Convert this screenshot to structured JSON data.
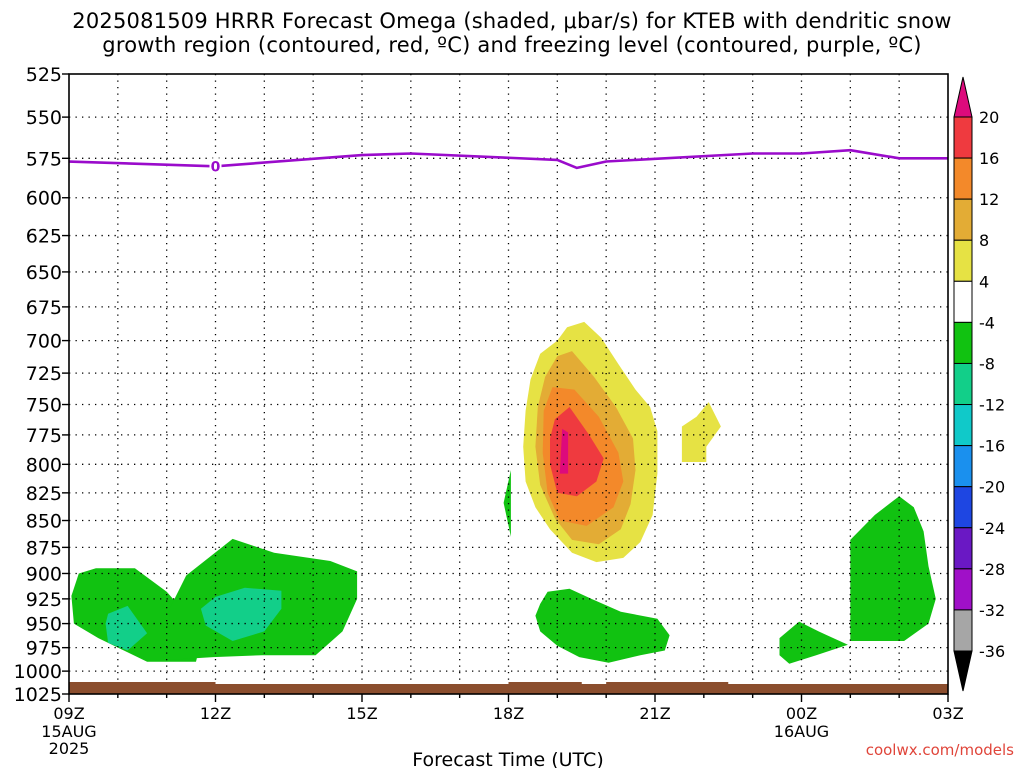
{
  "title_line1": "2025081509 HRRR Forecast Omega (shaded, μbar/s) for KTEB with dendritic snow",
  "title_line2": "growth region (contoured, red, ºC) and freezing level (contoured, purple, ºC)",
  "credit": "coolwx.com/models",
  "chart_data": {
    "type": "heatmap",
    "xlabel": "Forecast Time (UTC)",
    "x_range": [
      "2025-08-15 09Z",
      "2025-08-16 03Z"
    ],
    "x_ticks": [
      {
        "label": "09Z",
        "hours": 0,
        "sub": [
          "15AUG",
          "2025"
        ]
      },
      {
        "label": "12Z",
        "hours": 3,
        "sub": []
      },
      {
        "label": "15Z",
        "hours": 6,
        "sub": []
      },
      {
        "label": "18Z",
        "hours": 9,
        "sub": []
      },
      {
        "label": "21Z",
        "hours": 12,
        "sub": []
      },
      {
        "label": "00Z",
        "hours": 15,
        "sub": [
          "16AUG"
        ]
      },
      {
        "label": "03Z",
        "hours": 18,
        "sub": []
      }
    ],
    "y_ticks": [
      525,
      550,
      575,
      600,
      625,
      650,
      675,
      700,
      725,
      750,
      775,
      800,
      825,
      850,
      875,
      900,
      925,
      950,
      975,
      1000,
      1025
    ],
    "y_range_hpa": [
      525,
      1025
    ],
    "y_scale": "log",
    "grid": true,
    "colorbar": {
      "units": "μbar/s",
      "levels": [
        20,
        16,
        12,
        8,
        4,
        -4,
        -8,
        -12,
        -16,
        -20,
        -24,
        -28,
        -32,
        -36
      ],
      "colors": [
        "#dd0a7c",
        "#ef3a3f",
        "#f3892a",
        "#e3ac35",
        "#e6e244",
        "#ffffff",
        "#11c211",
        "#12cf89",
        "#10c9c9",
        "#1a90ee",
        "#1e46e2",
        "#6a18c4",
        "#a010c8",
        "#a6a6a6",
        "#000000"
      ]
    },
    "freezing_level": {
      "label": "0",
      "color": "#9a0bcb",
      "points": [
        [
          0,
          577
        ],
        [
          3,
          580
        ],
        [
          6,
          573
        ],
        [
          7,
          572
        ],
        [
          10,
          576
        ],
        [
          10.4,
          581
        ],
        [
          11,
          577
        ],
        [
          14,
          572
        ],
        [
          15,
          572
        ],
        [
          16,
          570
        ],
        [
          17,
          575
        ],
        [
          18,
          575
        ]
      ]
    },
    "regions": [
      {
        "name": "green-sw",
        "value": -6,
        "color": "#11c211",
        "points": [
          [
            0.55,
            895
          ],
          [
            1.35,
            895
          ],
          [
            2,
            918
          ],
          [
            2.4,
            940
          ],
          [
            2.75,
            958
          ],
          [
            2.6,
            990
          ],
          [
            1.6,
            990
          ],
          [
            0.6,
            965
          ],
          [
            0.1,
            950
          ],
          [
            0.05,
            922
          ],
          [
            0.2,
            900
          ]
        ]
      },
      {
        "name": "teal-sw",
        "value": -10,
        "color": "#12cf89",
        "points": [
          [
            0.8,
            940
          ],
          [
            1.2,
            932
          ],
          [
            1.6,
            960
          ],
          [
            1.2,
            978
          ],
          [
            0.8,
            970
          ],
          [
            0.75,
            950
          ]
        ]
      },
      {
        "name": "green-12z-15z",
        "value": -6,
        "color": "#11c211",
        "points": [
          [
            2.05,
            936
          ],
          [
            2.4,
            902
          ],
          [
            3.35,
            867
          ],
          [
            4.2,
            880
          ],
          [
            5.35,
            888
          ],
          [
            5.9,
            898
          ],
          [
            5.9,
            925
          ],
          [
            5.6,
            958
          ],
          [
            5.05,
            983
          ],
          [
            3.95,
            983
          ],
          [
            2.95,
            985
          ],
          [
            2.05,
            988
          ]
        ]
      },
      {
        "name": "teal-13z",
        "value": -10,
        "color": "#12cf89",
        "points": [
          [
            3,
            923
          ],
          [
            3.6,
            914
          ],
          [
            4.35,
            917
          ],
          [
            4.35,
            935
          ],
          [
            4,
            958
          ],
          [
            3.35,
            968
          ],
          [
            2.8,
            952
          ],
          [
            2.7,
            935
          ]
        ]
      },
      {
        "name": "green-18z",
        "value": -6,
        "color": "#11c211",
        "points": [
          [
            8.9,
            834
          ],
          [
            9.05,
            805
          ],
          [
            9.05,
            865
          ]
        ]
      },
      {
        "name": "yellow-main",
        "value": 6,
        "color": "#e6e244",
        "points": [
          [
            10.0,
            700
          ],
          [
            10.2,
            690
          ],
          [
            10.55,
            686
          ],
          [
            10.9,
            698
          ],
          [
            11.25,
            718
          ],
          [
            11.6,
            738
          ],
          [
            11.9,
            752
          ],
          [
            12.05,
            772
          ],
          [
            12.05,
            808
          ],
          [
            11.95,
            845
          ],
          [
            11.7,
            870
          ],
          [
            11.35,
            885
          ],
          [
            10.8,
            889
          ],
          [
            10.3,
            880
          ],
          [
            9.85,
            858
          ],
          [
            9.55,
            838
          ],
          [
            9.35,
            815
          ],
          [
            9.3,
            785
          ],
          [
            9.35,
            755
          ],
          [
            9.45,
            730
          ],
          [
            9.65,
            710
          ]
        ]
      },
      {
        "name": "orange-light",
        "value": 10,
        "color": "#e3ac35",
        "points": [
          [
            10.0,
            712
          ],
          [
            10.3,
            708
          ],
          [
            10.75,
            728
          ],
          [
            11.2,
            752
          ],
          [
            11.55,
            778
          ],
          [
            11.6,
            805
          ],
          [
            11.5,
            835
          ],
          [
            11.3,
            858
          ],
          [
            10.85,
            872
          ],
          [
            10.3,
            868
          ],
          [
            9.95,
            848
          ],
          [
            9.65,
            818
          ],
          [
            9.55,
            785
          ],
          [
            9.6,
            752
          ],
          [
            9.75,
            728
          ]
        ]
      },
      {
        "name": "orange",
        "value": 14,
        "color": "#f3892a",
        "points": [
          [
            9.9,
            736
          ],
          [
            10.35,
            738
          ],
          [
            10.85,
            760
          ],
          [
            11.25,
            790
          ],
          [
            11.35,
            815
          ],
          [
            11.15,
            838
          ],
          [
            10.6,
            855
          ],
          [
            10.05,
            850
          ],
          [
            9.8,
            825
          ],
          [
            9.7,
            790
          ],
          [
            9.72,
            755
          ]
        ]
      },
      {
        "name": "red",
        "value": 18,
        "color": "#ef3a3f",
        "points": [
          [
            9.95,
            762
          ],
          [
            10.25,
            752
          ],
          [
            10.65,
            775
          ],
          [
            10.95,
            795
          ],
          [
            10.8,
            815
          ],
          [
            10.4,
            828
          ],
          [
            10.0,
            825
          ],
          [
            9.85,
            800
          ],
          [
            9.85,
            778
          ]
        ]
      },
      {
        "name": "magenta-core",
        "value": 22,
        "color": "#dd0a7c",
        "points": [
          [
            10.1,
            770
          ],
          [
            10.22,
            773
          ],
          [
            10.22,
            808
          ],
          [
            10.05,
            808
          ]
        ]
      },
      {
        "name": "yellow-22z",
        "value": 6,
        "color": "#e6e244",
        "points": [
          [
            12.55,
            768
          ],
          [
            12.85,
            760
          ],
          [
            13.1,
            748
          ],
          [
            13.35,
            768
          ],
          [
            13.05,
            785
          ],
          [
            13.05,
            798
          ],
          [
            12.55,
            798
          ]
        ]
      },
      {
        "name": "green-20z",
        "value": -6,
        "color": "#11c211",
        "points": [
          [
            9.65,
            930
          ],
          [
            9.8,
            918
          ],
          [
            10.25,
            915
          ],
          [
            10.7,
            925
          ],
          [
            11.3,
            938
          ],
          [
            12.05,
            945
          ],
          [
            12.3,
            962
          ],
          [
            12.2,
            978
          ],
          [
            11.7,
            983
          ],
          [
            11.05,
            991
          ],
          [
            10.45,
            985
          ],
          [
            10.0,
            973
          ],
          [
            9.65,
            958
          ],
          [
            9.55,
            942
          ]
        ]
      },
      {
        "name": "green-23z",
        "value": -6,
        "color": "#11c211",
        "points": [
          [
            14.55,
            965
          ],
          [
            14.95,
            948
          ],
          [
            15.35,
            958
          ],
          [
            15.95,
            972
          ],
          [
            15.3,
            983
          ],
          [
            14.75,
            992
          ],
          [
            14.55,
            983
          ]
        ]
      },
      {
        "name": "green-01z",
        "value": -6,
        "color": "#11c211",
        "points": [
          [
            16.0,
            868
          ],
          [
            16.5,
            845
          ],
          [
            17.0,
            828
          ],
          [
            17.3,
            838
          ],
          [
            17.5,
            860
          ],
          [
            17.6,
            893
          ],
          [
            17.75,
            925
          ],
          [
            17.6,
            950
          ],
          [
            17.1,
            968
          ],
          [
            16.0,
            968
          ],
          [
            16.0,
            925
          ]
        ]
      }
    ],
    "surface": {
      "color": "#8b4e2e",
      "pressure_top": 1014,
      "pressure_bottom": 1025
    }
  }
}
